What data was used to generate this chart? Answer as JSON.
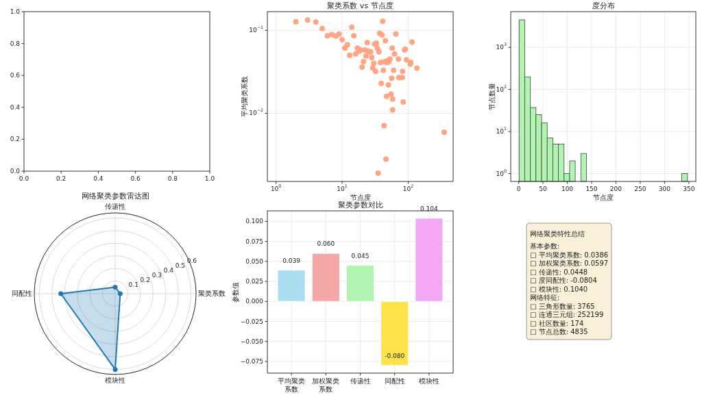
{
  "chart_data": [
    {
      "type": "scatter",
      "xlim": [
        0,
        1
      ],
      "ylim": [
        0,
        1
      ],
      "xticks": [
        {
          "value": 0,
          "label": "0.0"
        },
        {
          "value": 0.2,
          "label": "0.2"
        },
        {
          "value": 0.4,
          "label": "0.4"
        },
        {
          "value": 0.6,
          "label": "0.6"
        },
        {
          "value": 0.8,
          "label": "0.8"
        },
        {
          "value": 1,
          "label": "1.0"
        }
      ],
      "yticks": [
        {
          "value": 0,
          "label": "0.0"
        },
        {
          "value": 0.2,
          "label": "0.2"
        },
        {
          "value": 0.4,
          "label": "0.4"
        },
        {
          "value": 0.6,
          "label": "0.6"
        },
        {
          "value": 0.8,
          "label": "0.8"
        },
        {
          "value": 1,
          "label": "1.0"
        }
      ]
    },
    {
      "type": "scatter",
      "title": "聚类系数 vs 节点度",
      "xlabel": "节点度",
      "ylabel": "平均聚类系数",
      "color": "#ffa584",
      "marker": "circle",
      "log": "xy",
      "grid": true,
      "x": [
        2,
        3,
        4,
        5,
        6,
        7,
        8,
        9,
        10,
        11,
        12,
        13,
        14,
        15,
        16,
        17,
        18,
        19,
        20,
        21,
        22,
        23,
        24,
        25,
        26,
        27,
        28,
        29,
        30,
        31,
        32,
        33,
        34,
        35,
        36,
        37,
        38,
        39,
        40,
        41,
        42,
        43,
        44,
        45,
        46,
        47,
        48,
        49,
        50,
        51,
        53,
        55,
        56,
        57,
        58,
        58,
        60,
        62,
        65,
        71,
        72,
        81,
        82,
        84,
        88,
        90,
        94,
        107,
        109,
        114,
        135,
        349
      ],
      "values": [
        0.127,
        0.133,
        0.126,
        0.105,
        0.086,
        0.089,
        0.085,
        0.09,
        0.077,
        0.061,
        0.067,
        0.05,
        0.109,
        0.086,
        0.052,
        0.061,
        0.056,
        0.058,
        0.036,
        0.042,
        0.058,
        0.049,
        0.071,
        0.056,
        0.055,
        0.055,
        0.047,
        0.035,
        0.04,
        0.068,
        0.032,
        0.07,
        0.061,
        0.0019,
        0.055,
        0.092,
        0.041,
        0.023,
        0.088,
        0.129,
        0.033,
        0.0071,
        0.042,
        0.075,
        0.0028,
        0.016,
        0.041,
        0.043,
        0.022,
        0.042,
        0.045,
        0.017,
        0.0265,
        0.061,
        0.0148,
        0.011,
        0.033,
        0.052,
        0.09,
        0.045,
        0.027,
        0.027,
        0.032,
        0.0137,
        0.058,
        0.059,
        0.044,
        0.039,
        0.041,
        0.072,
        0.035,
        0.0059
      ],
      "xlim": [
        0.74,
        477
      ],
      "ylim": [
        0.00151,
        0.168
      ],
      "xticks": [
        {
          "value": 1,
          "label": "10$^{0}$"
        },
        {
          "value": 10,
          "label": "10$^{1}$"
        },
        {
          "value": 100,
          "label": "10$^{2}$"
        }
      ],
      "yticks": [
        {
          "value": 0.01,
          "label": "10$^{−2}$"
        },
        {
          "value": 0.1,
          "label": "10$^{−1}$"
        }
      ]
    },
    {
      "type": "histogram",
      "title": "度分布",
      "xlabel": "节点度",
      "ylabel": "节点数量",
      "color": "#b1f3b1",
      "log": true,
      "grid": true,
      "bins": [
        1,
        12.5,
        24.1,
        35.6,
        47.1,
        58.7,
        70.2,
        81.7,
        93.3,
        104.8,
        116.3,
        127.9,
        139.4,
        335.5,
        347
      ],
      "values": [
        4500,
        199,
        37,
        25,
        16,
        7,
        5,
        5,
        1,
        2,
        null,
        3,
        null,
        1
      ],
      "xlim": [
        -16.3,
        364.3
      ],
      "ylim": [
        0.65,
        7050
      ],
      "xticks": [
        0,
        50,
        100,
        150,
        200,
        250,
        300,
        350
      ],
      "yticks": [
        {
          "value": 1,
          "label": "10$^{0}$"
        },
        {
          "value": 10,
          "label": "10$^{1}$"
        },
        {
          "value": 100,
          "label": "10$^{2}$"
        },
        {
          "value": 1000,
          "label": "10$^{3}$"
        }
      ]
    },
    {
      "type": "radar",
      "title": "网络聚类参数雷达图",
      "categories": [
        "传递性",
        "聚类系数",
        "模块性",
        "同配性"
      ],
      "marker": "circle",
      "grid": true,
      "series": [
        {
          "color": "#1f77b4",
          "values": [
            0.052,
            0.04,
            0.6,
            0.43
          ]
        }
      ],
      "ylim": [
        0,
        0.64
      ],
      "yticks": [
        0.1,
        0.2,
        0.3,
        0.4,
        0.5,
        0.6
      ]
    },
    {
      "type": "bar",
      "title": "聚类参数对比",
      "ylabel": "参数值",
      "grid": true,
      "categories": [
        "平均聚类系数",
        "加权聚类系数",
        "传递性",
        "同配性",
        "模块性"
      ],
      "values": [
        0.039,
        0.06,
        0.045,
        -0.08,
        0.104
      ],
      "colors": [
        "#abddf1",
        "#f5a6a6",
        "#b1f3b1",
        "#ffe34d",
        "#f3a8f3"
      ],
      "value_labels": [
        "0.039",
        "0.060",
        "0.045",
        "-0.080",
        "0.104"
      ],
      "ylim": [
        -0.0896,
        0.1132
      ],
      "yticks": [
        {
          "value": -0.075,
          "label": "−0.075"
        },
        {
          "value": -0.05,
          "label": "−0.050"
        },
        {
          "value": -0.025,
          "label": "−0.025"
        },
        {
          "value": 0,
          "label": "0.000"
        },
        {
          "value": 0.025,
          "label": "0.025"
        },
        {
          "value": 0.05,
          "label": "0.050"
        },
        {
          "value": 0.075,
          "label": "0.075"
        },
        {
          "value": 0.1,
          "label": "0.100"
        }
      ]
    },
    {
      "type": "other",
      "title": "网络聚类特性总结",
      "annotations": [
        "基本参数:",
        "□ 平均聚类系数: 0.0386",
        "□ 加权聚类系数: 0.0597",
        "□ 传递性: 0.0448",
        "□ 度同配性: -0.0804",
        "□ 模块性: 0.1040",
        "网络特征:",
        "□ 三角形数量: 3765",
        "□ 连通三元组: 252199",
        "□ 社区数量: 174",
        "□ 节点总数: 4835"
      ]
    }
  ]
}
